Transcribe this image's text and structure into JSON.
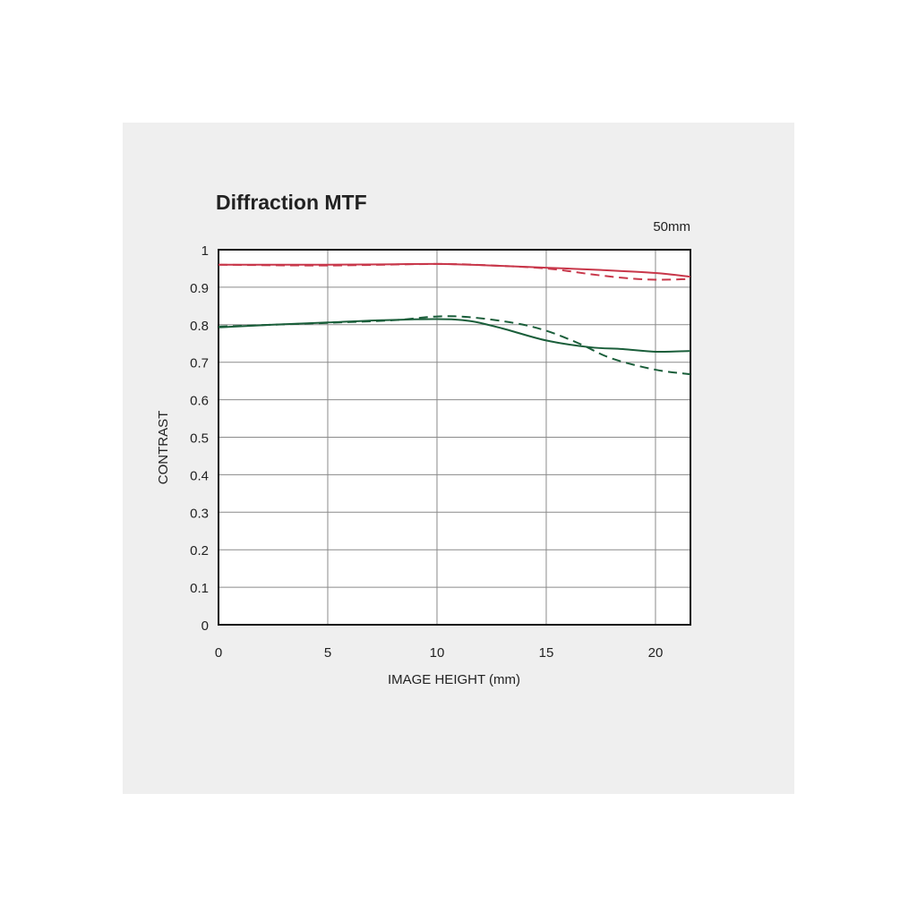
{
  "chart_data": {
    "type": "line",
    "title": "Diffraction MTF",
    "subtitle": "50mm",
    "x_label": "IMAGE HEIGHT (mm)",
    "y_label": "CONTRAST",
    "xlim": [
      0,
      21.6
    ],
    "ylim": [
      0,
      1
    ],
    "xticks": [
      0,
      5,
      10,
      15,
      20
    ],
    "yticks": [
      0,
      0.1,
      0.2,
      0.3,
      0.4,
      0.5,
      0.6,
      0.7,
      0.8,
      0.9,
      1
    ],
    "grid": true,
    "series": [
      {
        "color": "#c8374a",
        "dashed": false,
        "x": [
          0,
          2.5,
          5,
          7.5,
          10,
          12.5,
          15,
          17.5,
          20,
          21.6
        ],
        "values": [
          0.96,
          0.96,
          0.96,
          0.961,
          0.962,
          0.958,
          0.952,
          0.946,
          0.938,
          0.928
        ]
      },
      {
        "color": "#c8374a",
        "dashed": true,
        "x": [
          0,
          5,
          10,
          12.5,
          15,
          17,
          18.5,
          20,
          21.6
        ],
        "values": [
          0.96,
          0.958,
          0.962,
          0.958,
          0.95,
          0.935,
          0.925,
          0.92,
          0.922
        ]
      },
      {
        "color": "#1a5e3a",
        "dashed": false,
        "x": [
          0,
          2.5,
          5,
          7.5,
          10,
          11.5,
          13,
          15,
          17,
          18.5,
          20,
          21.6
        ],
        "values": [
          0.793,
          0.8,
          0.806,
          0.812,
          0.815,
          0.81,
          0.79,
          0.758,
          0.74,
          0.735,
          0.728,
          0.73
        ]
      },
      {
        "color": "#1a5e3a",
        "dashed": true,
        "x": [
          0,
          5,
          8,
          10,
          11.5,
          13.5,
          15,
          16.5,
          18,
          20,
          21.6
        ],
        "values": [
          0.795,
          0.805,
          0.812,
          0.822,
          0.82,
          0.805,
          0.784,
          0.75,
          0.71,
          0.68,
          0.668
        ]
      }
    ]
  }
}
